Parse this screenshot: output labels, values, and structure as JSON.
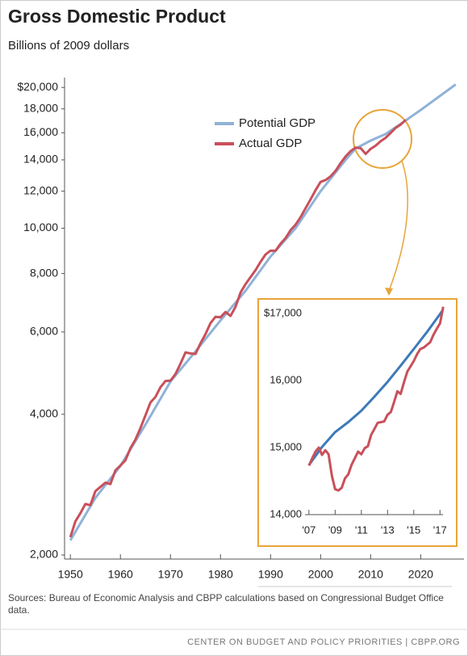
{
  "title": "Gross Domestic Product",
  "subtitle": "Billions of 2009 dollars",
  "sources": "Sources: Bureau of Economic Analysis and CBPP calculations based on Congressional Budget Office data.",
  "footer": "CENTER ON BUDGET AND POLICY PRIORITIES | CBPP.ORG",
  "chart_data": [
    {
      "type": "line",
      "log_scale": true,
      "legend": "top",
      "xlim": [
        1949,
        2028
      ],
      "xticks": [
        1950,
        1960,
        1970,
        1980,
        1990,
        2000,
        2010,
        2020
      ],
      "ylim": [
        2000,
        21000
      ],
      "yticks": [
        {
          "value": 2000,
          "label": "2,000"
        },
        {
          "value": 4000,
          "label": "4,000"
        },
        {
          "value": 6000,
          "label": "6,000"
        },
        {
          "value": 8000,
          "label": "8,000"
        },
        {
          "value": 10000,
          "label": "10,000"
        },
        {
          "value": 12000,
          "label": "12,000"
        },
        {
          "value": 14000,
          "label": "14,000"
        },
        {
          "value": 16000,
          "label": "16,000"
        },
        {
          "value": 18000,
          "label": "18,000"
        },
        {
          "value": 20000,
          "label": "$20,000"
        }
      ],
      "series": [
        {
          "name": "Potential GDP",
          "color": "#90b2d8",
          "x": [
            1950,
            1955,
            1960,
            1965,
            1970,
            1975,
            1980,
            1985,
            1990,
            1995,
            2000,
            2005,
            2007,
            2010,
            2013,
            2017,
            2020,
            2027
          ],
          "values": [
            2150,
            2650,
            3100,
            3800,
            4700,
            5450,
            6350,
            7350,
            8700,
            10000,
            12000,
            14000,
            14800,
            15400,
            15900,
            17000,
            17900,
            20300
          ]
        },
        {
          "name": "Actual GDP",
          "color": "#c8505a",
          "x": [
            1950,
            1951,
            1952,
            1953,
            1954,
            1955,
            1956,
            1957,
            1958,
            1959,
            1960,
            1961,
            1962,
            1963,
            1964,
            1965,
            1966,
            1967,
            1968,
            1969,
            1970,
            1971,
            1972,
            1973,
            1974,
            1975,
            1976,
            1977,
            1978,
            1979,
            1980,
            1981,
            1982,
            1983,
            1984,
            1985,
            1986,
            1987,
            1988,
            1989,
            1990,
            1991,
            1992,
            1993,
            1994,
            1995,
            1996,
            1997,
            1998,
            1999,
            2000,
            2001,
            2002,
            2003,
            2004,
            2005,
            2006,
            2007,
            2008,
            2009,
            2010,
            2011,
            2012,
            2013,
            2014,
            2015,
            2016,
            2017
          ],
          "values": [
            2184,
            2360,
            2457,
            2571,
            2556,
            2739,
            2797,
            2856,
            2836,
            3033,
            3108,
            3188,
            3384,
            3530,
            3735,
            3976,
            4238,
            4355,
            4569,
            4713,
            4722,
            4878,
            5134,
            5424,
            5397,
            5385,
            5675,
            5937,
            6267,
            6466,
            6450,
            6618,
            6491,
            6792,
            7285,
            7594,
            7861,
            8133,
            8475,
            8787,
            8955,
            8948,
            9267,
            9521,
            9905,
            10175,
            10561,
            11035,
            11526,
            12066,
            12560,
            12682,
            12909,
            13271,
            13774,
            14234,
            14614,
            14874,
            14830,
            14419,
            14784,
            15021,
            15355,
            15612,
            15982,
            16397,
            16662,
            17050
          ]
        }
      ]
    },
    {
      "type": "line",
      "log_scale": false,
      "xlim": [
        2006.7,
        2017.6
      ],
      "xticks": [
        {
          "value": 2007,
          "label": "'07"
        },
        {
          "value": 2009,
          "label": "'09"
        },
        {
          "value": 2011,
          "label": "'11"
        },
        {
          "value": 2013,
          "label": "'13"
        },
        {
          "value": 2015,
          "label": "'15"
        },
        {
          "value": 2017,
          "label": "'17"
        }
      ],
      "ylim": [
        14000,
        17200
      ],
      "yticks": [
        {
          "value": 14000,
          "label": "14,000"
        },
        {
          "value": 15000,
          "label": "15,000"
        },
        {
          "value": 16000,
          "label": "16,000"
        },
        {
          "value": 17000,
          "label": "$17,000"
        }
      ],
      "series": [
        {
          "color": "#3d7ab8",
          "x": [
            2007,
            2008,
            2009,
            2010,
            2011,
            2012,
            2013,
            2014,
            2015,
            2016,
            2017,
            2017.25
          ],
          "values": [
            14740,
            15010,
            15230,
            15380,
            15550,
            15760,
            15980,
            16220,
            16470,
            16720,
            16990,
            17060
          ]
        },
        {
          "color": "#c8505a",
          "x": [
            2007,
            2007.25,
            2007.5,
            2007.75,
            2008,
            2008.25,
            2008.5,
            2008.75,
            2009,
            2009.25,
            2009.5,
            2009.75,
            2010,
            2010.25,
            2010.5,
            2010.75,
            2011,
            2011.25,
            2011.5,
            2011.75,
            2012,
            2012.25,
            2012.5,
            2012.75,
            2013,
            2013.25,
            2013.5,
            2013.75,
            2014,
            2014.25,
            2014.5,
            2014.75,
            2015,
            2015.25,
            2015.5,
            2015.75,
            2016,
            2016.25,
            2016.5,
            2016.75,
            2017,
            2017.25
          ],
          "values": [
            14730,
            14840,
            14940,
            15000,
            14890,
            14960,
            14900,
            14580,
            14380,
            14360,
            14400,
            14540,
            14600,
            14740,
            14840,
            14940,
            14900,
            14990,
            15020,
            15190,
            15280,
            15370,
            15380,
            15390,
            15490,
            15530,
            15680,
            15840,
            15800,
            15970,
            16130,
            16210,
            16290,
            16390,
            16470,
            16490,
            16530,
            16570,
            16680,
            16770,
            16850,
            17100
          ]
        }
      ]
    }
  ]
}
